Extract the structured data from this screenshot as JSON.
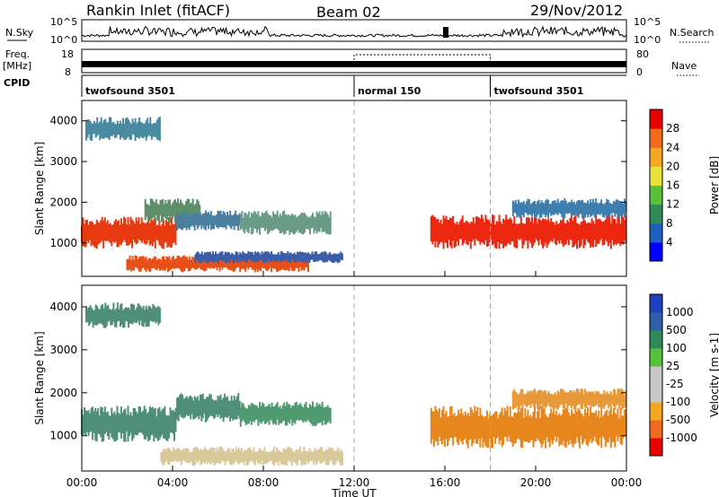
{
  "header": {
    "station": "Rankin Inlet (fitACF)",
    "beam": "Beam 02",
    "date": "29/Nov/2012"
  },
  "status_panel": {
    "nsky_label": "N.Sky",
    "nsky_ticks": [
      "10^5",
      "10^0"
    ],
    "nsearch_label": "N.Search",
    "nsearch_ticks": [
      "10^5",
      "10^0"
    ],
    "freq_label": "Freq.",
    "freq_unit": "[MHz]",
    "freq_ticks": [
      "18",
      "8"
    ],
    "nave_label": "Nave",
    "nave_ticks": [
      "80",
      "0"
    ],
    "cpid_label": "CPID",
    "cpid_segments": [
      {
        "label": "twofsound 3501",
        "start_h": 0,
        "end_h": 12
      },
      {
        "label": "normal 150",
        "start_h": 12,
        "end_h": 18
      },
      {
        "label": "twofsound 3501",
        "start_h": 18,
        "end_h": 24
      }
    ]
  },
  "chart_data": [
    {
      "type": "heatmap",
      "name": "power-panel",
      "ylabel": "Slant Range [km]",
      "xlabel": "",
      "x_ticks": [
        "00:00",
        "04:00",
        "08:00",
        "12:00",
        "16:00",
        "20:00",
        "00:00"
      ],
      "xlim_hours": [
        0,
        24
      ],
      "y_ticks": [
        "1000",
        "2000",
        "3000",
        "4000"
      ],
      "ylim": [
        180,
        4500
      ],
      "colorbar": {
        "label": "Power [dB]",
        "ticks": [
          "28",
          "24",
          "20",
          "16",
          "12",
          "8",
          "4"
        ],
        "colors": [
          "#0000ff",
          "#1f5fbf",
          "#2e8b57",
          "#56c23a",
          "#e8e23a",
          "#f5a623",
          "#f26a1b",
          "#e60000"
        ]
      },
      "echo_regions": [
        {
          "t0": 0.0,
          "t1": 4.2,
          "r0": 850,
          "r1": 1650,
          "color": "#e83a10"
        },
        {
          "t0": 2.8,
          "t1": 5.2,
          "r0": 1500,
          "r1": 2100,
          "color": "#5c8f6a"
        },
        {
          "t0": 4.2,
          "t1": 7.0,
          "r0": 1300,
          "r1": 1800,
          "color": "#4a7fa0"
        },
        {
          "t0": 7.0,
          "t1": 11.0,
          "r0": 1200,
          "r1": 1800,
          "color": "#6a9a88"
        },
        {
          "t0": 2.0,
          "t1": 10.0,
          "r0": 280,
          "r1": 700,
          "color": "#e8501a"
        },
        {
          "t0": 5.0,
          "t1": 11.5,
          "r0": 500,
          "r1": 800,
          "color": "#3a5fa8"
        },
        {
          "t0": 15.4,
          "t1": 24.0,
          "r0": 850,
          "r1": 1700,
          "color": "#ec2810"
        },
        {
          "t0": 19.0,
          "t1": 24.0,
          "r0": 1600,
          "r1": 2100,
          "color": "#3f7fb0"
        },
        {
          "t0": 0.2,
          "t1": 3.5,
          "r0": 3500,
          "r1": 4100,
          "color": "#4a8aa0"
        }
      ]
    },
    {
      "type": "heatmap",
      "name": "velocity-panel",
      "ylabel": "Slant Range [km]",
      "xlabel": "Time UT",
      "x_ticks": [
        "00:00",
        "04:00",
        "08:00",
        "12:00",
        "16:00",
        "20:00",
        "00:00"
      ],
      "xlim_hours": [
        0,
        24
      ],
      "y_ticks": [
        "1000",
        "2000",
        "3000",
        "4000"
      ],
      "ylim": [
        180,
        4500
      ],
      "colorbar": {
        "label": "Velocity [m s-1]",
        "ticks": [
          "1000",
          "500",
          "100",
          "25",
          "-25",
          "-100",
          "-500",
          "-1000"
        ],
        "colors": [
          "#e60000",
          "#f26a1b",
          "#f5a623",
          "#c8c8c8",
          "#c8c8c8",
          "#56c23a",
          "#2e8b57",
          "#2e5fa8",
          "#1f3fbf"
        ]
      },
      "echo_regions": [
        {
          "t0": 0.0,
          "t1": 4.2,
          "r0": 850,
          "r1": 1700,
          "color": "#4f8f7a"
        },
        {
          "t0": 4.2,
          "t1": 7.0,
          "r0": 1300,
          "r1": 2000,
          "color": "#4f8f7a"
        },
        {
          "t0": 7.0,
          "t1": 11.0,
          "r0": 1200,
          "r1": 1800,
          "color": "#4f9a70"
        },
        {
          "t0": 3.5,
          "t1": 11.5,
          "r0": 300,
          "r1": 750,
          "color": "#d8c89a"
        },
        {
          "t0": 15.4,
          "t1": 24.0,
          "r0": 700,
          "r1": 1700,
          "color": "#e8861e"
        },
        {
          "t0": 19.0,
          "t1": 24.0,
          "r0": 1600,
          "r1": 2100,
          "color": "#e89a3a"
        },
        {
          "t0": 0.2,
          "t1": 3.5,
          "r0": 3500,
          "r1": 4100,
          "color": "#4f8f7a"
        }
      ]
    }
  ]
}
